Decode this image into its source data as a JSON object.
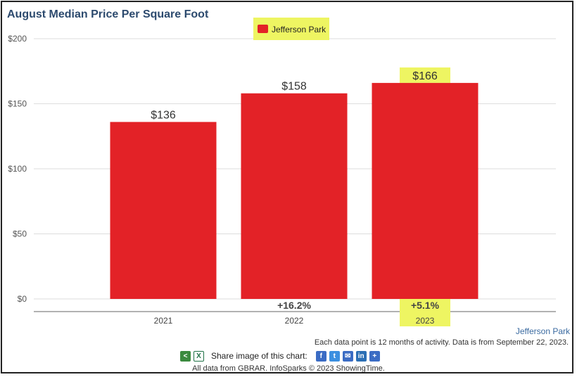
{
  "title": "August Median Price Per Square Foot",
  "chart_data": {
    "type": "bar",
    "title": "August Median Price Per Square Foot",
    "categories": [
      "2021",
      "2022",
      "2023"
    ],
    "series": [
      {
        "name": "Jefferson Park",
        "values": [
          136,
          158,
          166
        ],
        "color": "#e32227"
      }
    ],
    "data_labels": [
      "$136",
      "$158",
      "$166"
    ],
    "change_labels": [
      "",
      "+16.2%",
      "+5.1%"
    ],
    "highlight_color": "#eef562",
    "ylim": [
      0,
      200
    ],
    "yticks": [
      0,
      50,
      100,
      150,
      200
    ],
    "ytick_labels": [
      "$0",
      "$50",
      "$100",
      "$150",
      "$200"
    ],
    "legend_position": "top-center",
    "grid": true
  },
  "legend_label": "Jefferson Park",
  "region_label": "Jefferson Park",
  "note": "Each data point is 12 months of activity. Data is from September 22, 2023.",
  "share_text": "Share image of this chart:",
  "credit": "All data from GBRAR. InfoSparks © 2023 ShowingTime.",
  "icons": [
    "share-icon",
    "excel-icon",
    "facebook-icon",
    "twitter-icon",
    "email-icon",
    "linkedin-icon",
    "add-icon"
  ]
}
